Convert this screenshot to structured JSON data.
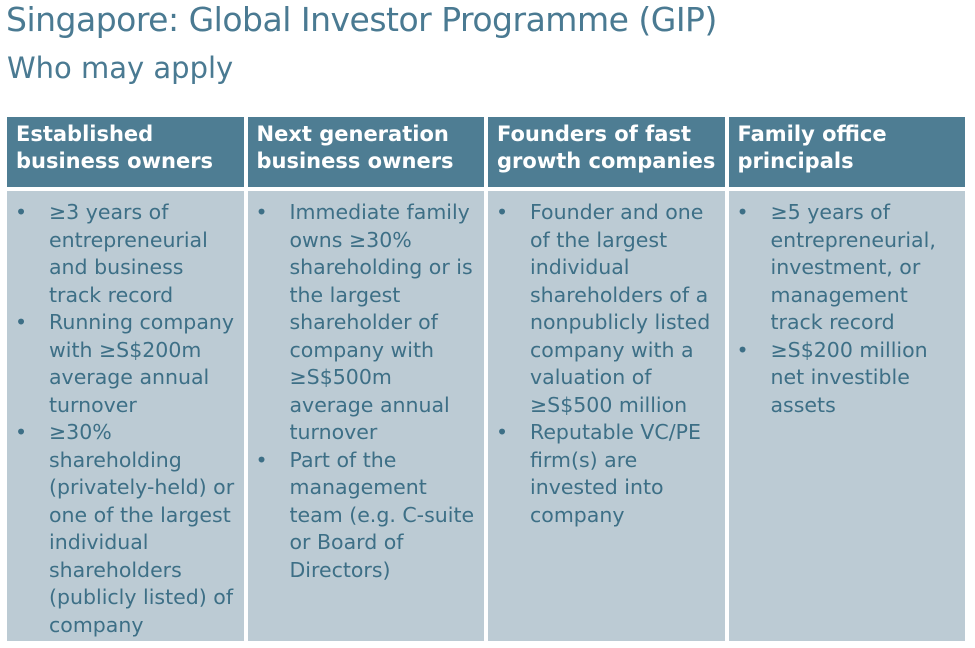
{
  "header": {
    "title": "Singapore: Global Investor Programme (GIP)",
    "subtitle": "Who may apply"
  },
  "colors": {
    "title": "#4a7a92",
    "header_bg": "#4e7d93",
    "cell_bg": "#bccbd4",
    "body_text": "#3d6f86"
  },
  "bullet_symbol": "•",
  "columns": [
    {
      "heading": "Established business owners",
      "items": [
        "≥3 years of entrepreneurial and business track record",
        "Running company with ≥S$200m average annual turnover",
        "≥30% shareholding (privately-held) or one of the largest individual shareholders (publicly listed) of company"
      ]
    },
    {
      "heading": "Next generation business owners",
      "items": [
        "Immediate family owns ≥30% shareholding or is the largest shareholder of company with ≥S$500m average annual turnover",
        "Part of the management team (e.g. C-suite or Board of Directors)"
      ]
    },
    {
      "heading": "Founders of fast growth companies",
      "items": [
        "Founder and one of the largest individual shareholders of a nonpublicly listed company with a valuation of ≥S$500 million",
        "Reputable VC/PE firm(s) are invested into company"
      ]
    },
    {
      "heading": "Family office principals",
      "items": [
        "≥5 years of entrepreneurial, investment, or management track record",
        "≥S$200 million net investible assets"
      ]
    }
  ]
}
